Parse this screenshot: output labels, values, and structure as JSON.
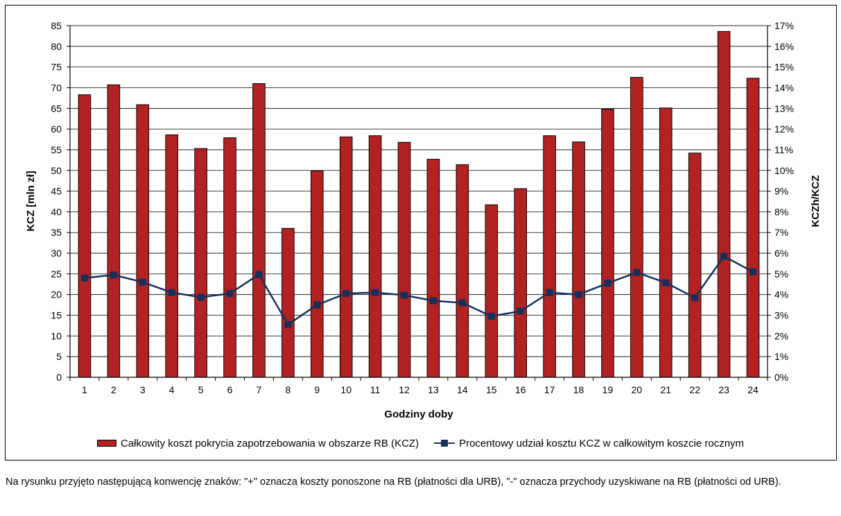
{
  "chart_data": {
    "type": "bar",
    "categories": [
      "1",
      "2",
      "3",
      "4",
      "5",
      "6",
      "7",
      "8",
      "9",
      "10",
      "11",
      "12",
      "13",
      "14",
      "15",
      "16",
      "17",
      "18",
      "19",
      "20",
      "21",
      "22",
      "23",
      "24"
    ],
    "series": [
      {
        "name": "Całkowity koszt pokrycia zapotrzebowania w obszarze RB (KCZ)",
        "type": "bar",
        "axis": "left",
        "color": "#B22222",
        "values": [
          68.3,
          70.7,
          65.9,
          58.6,
          55.3,
          57.9,
          71.0,
          36.0,
          49.9,
          58.1,
          58.4,
          56.8,
          52.7,
          51.4,
          41.7,
          45.6,
          58.4,
          56.9,
          64.8,
          72.5,
          65.1,
          54.2,
          83.6,
          72.3
        ]
      },
      {
        "name": "Procentowy udział kosztu KCZ w całkowitym koszcie rocznym",
        "type": "line",
        "axis": "right",
        "color": "#17305A",
        "values": [
          4.8,
          4.95,
          4.6,
          4.1,
          3.87,
          4.05,
          4.97,
          2.55,
          3.5,
          4.05,
          4.1,
          3.97,
          3.7,
          3.6,
          2.95,
          3.2,
          4.1,
          4.0,
          4.55,
          5.07,
          4.57,
          3.85,
          5.85,
          5.1
        ]
      }
    ],
    "xlabel": "Godziny doby",
    "ylabel": "KCZ [mln zł]",
    "ylabel_right": "KCZh/KCZ",
    "ylim": [
      0,
      85
    ],
    "ylim_right": [
      0,
      17
    ],
    "y_ticks": [
      "0",
      "5",
      "10",
      "15",
      "20",
      "25",
      "30",
      "35",
      "40",
      "45",
      "50",
      "55",
      "60",
      "65",
      "70",
      "75",
      "80",
      "85"
    ],
    "y_ticks_right": [
      "0%",
      "1%",
      "2%",
      "3%",
      "4%",
      "5%",
      "6%",
      "7%",
      "8%",
      "9%",
      "10%",
      "11%",
      "12%",
      "13%",
      "14%",
      "15%",
      "16%",
      "17%"
    ],
    "grid": true,
    "legend_position": "bottom"
  },
  "footnote": "Na rysunku przyjęto następującą konwencję znaków: \"+\" oznacza koszty ponoszone na RB (płatności dla URB), \"-\" oznacza przychody uzyskiwane na RB (płatności od URB)."
}
